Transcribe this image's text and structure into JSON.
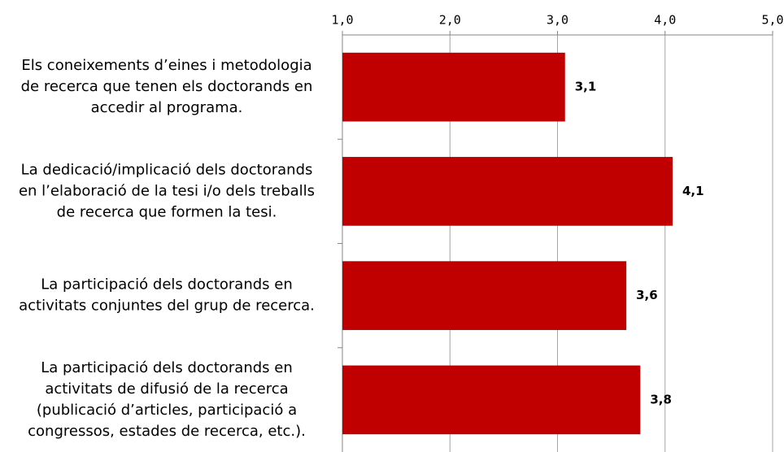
{
  "chart_data": {
    "type": "barh",
    "categories": [
      "Els coneixements d’eines i metodologia\nde recerca que tenen els doctorands en\naccedir al programa.",
      "La dedicació/implicació dels doctorands\nen l’elaboració de la tesi i/o dels treballs\nde recerca que formen la tesi.",
      "La participació dels doctorands en\nactivitats conjuntes del grup de recerca.",
      "La participació dels doctorands en\nactivitats de difusió de la recerca\n(publicació d’articles, participació a\ncongressos, estades de recerca, etc.)."
    ],
    "values": [
      3.07,
      4.07,
      3.64,
      3.77
    ],
    "value_labels": [
      "3,1",
      "4,1",
      "3,6",
      "3,8"
    ],
    "color": "#c00000",
    "xlim": [
      1,
      5
    ],
    "xticks": [
      {
        "value": 1,
        "label": "1,0"
      },
      {
        "value": 2,
        "label": "2,0"
      },
      {
        "value": 3,
        "label": "3,0"
      },
      {
        "value": 4,
        "label": "4,0"
      },
      {
        "value": 5,
        "label": "5,0"
      }
    ],
    "grid": true
  }
}
